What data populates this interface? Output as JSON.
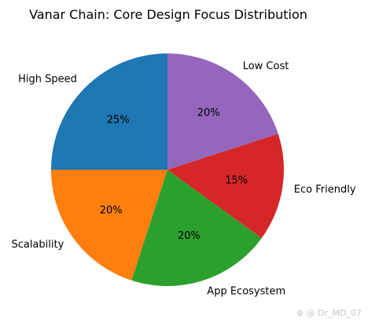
{
  "chart_data": {
    "type": "pie",
    "title": "Vanar Chain: Core Design Focus Distribution",
    "categories": [
      "High Speed",
      "Scalability",
      "App Ecosystem",
      "Eco Friendly",
      "Low Cost"
    ],
    "values": [
      25,
      20,
      20,
      15,
      20
    ],
    "percent_labels": [
      "25%",
      "20%",
      "20%",
      "15%",
      "20%"
    ],
    "colors": [
      "#1f77b4",
      "#ff7f0e",
      "#2ca02c",
      "#d62728",
      "#9467bd"
    ],
    "start_angle_deg": 90,
    "direction": "counterclockwise",
    "legend": "none"
  },
  "watermark": "⊕ @ Dr_MD_07"
}
